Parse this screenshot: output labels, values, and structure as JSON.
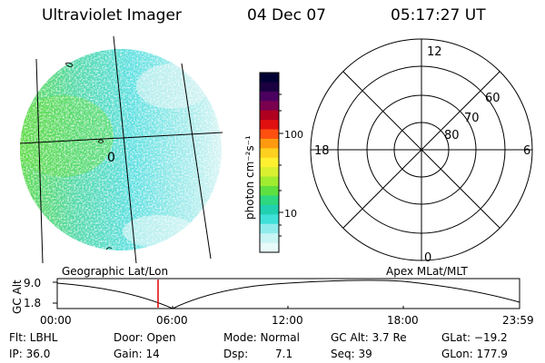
{
  "header": {
    "instrument": "Ultraviolet Imager",
    "date": "04 Dec 07",
    "time": "05:17:27 UT"
  },
  "geo_panel": {
    "center_label": "0",
    "caption": "Geographic Lat/Lon"
  },
  "colorbar": {
    "unit_label": "photon cm⁻²s⁻¹",
    "ticks": [
      "100",
      "10"
    ],
    "colors": [
      "#000033",
      "#1a0040",
      "#4b0060",
      "#7a0050",
      "#b00020",
      "#e01010",
      "#ff5010",
      "#ff9a10",
      "#ffd020",
      "#fff030",
      "#d8f030",
      "#a0ec30",
      "#5ee040",
      "#2ed880",
      "#20d0b0",
      "#40e0d8",
      "#90ecec",
      "#c8f4f4",
      "#e8fafa"
    ]
  },
  "polar_panel": {
    "caption": "Apex MLat/MLT",
    "mlt_labels": {
      "top": "12",
      "left": "18",
      "right": "6",
      "bottom": "0"
    },
    "lat_labels": [
      "60",
      "70",
      "80"
    ]
  },
  "timeline": {
    "y_axis_label": "GC Alt",
    "y_ticks": [
      "9.0",
      "1.8"
    ],
    "x_ticks": [
      "00:00",
      "06:00",
      "12:00",
      "18:00",
      "23:59"
    ]
  },
  "status": {
    "filter": "Flt: LBHL",
    "ip": "IP: 36.0",
    "door": "Door: Open",
    "gain": "Gain: 14",
    "mode": "Mode: Normal",
    "dsp_label": "Dsp:",
    "dsp_value": "7.1",
    "gc_alt": "GC Alt: 3.7 Re",
    "seq": "Seq: 39",
    "glat": "GLat: −19.2",
    "glon": "GLon: 177.9"
  }
}
